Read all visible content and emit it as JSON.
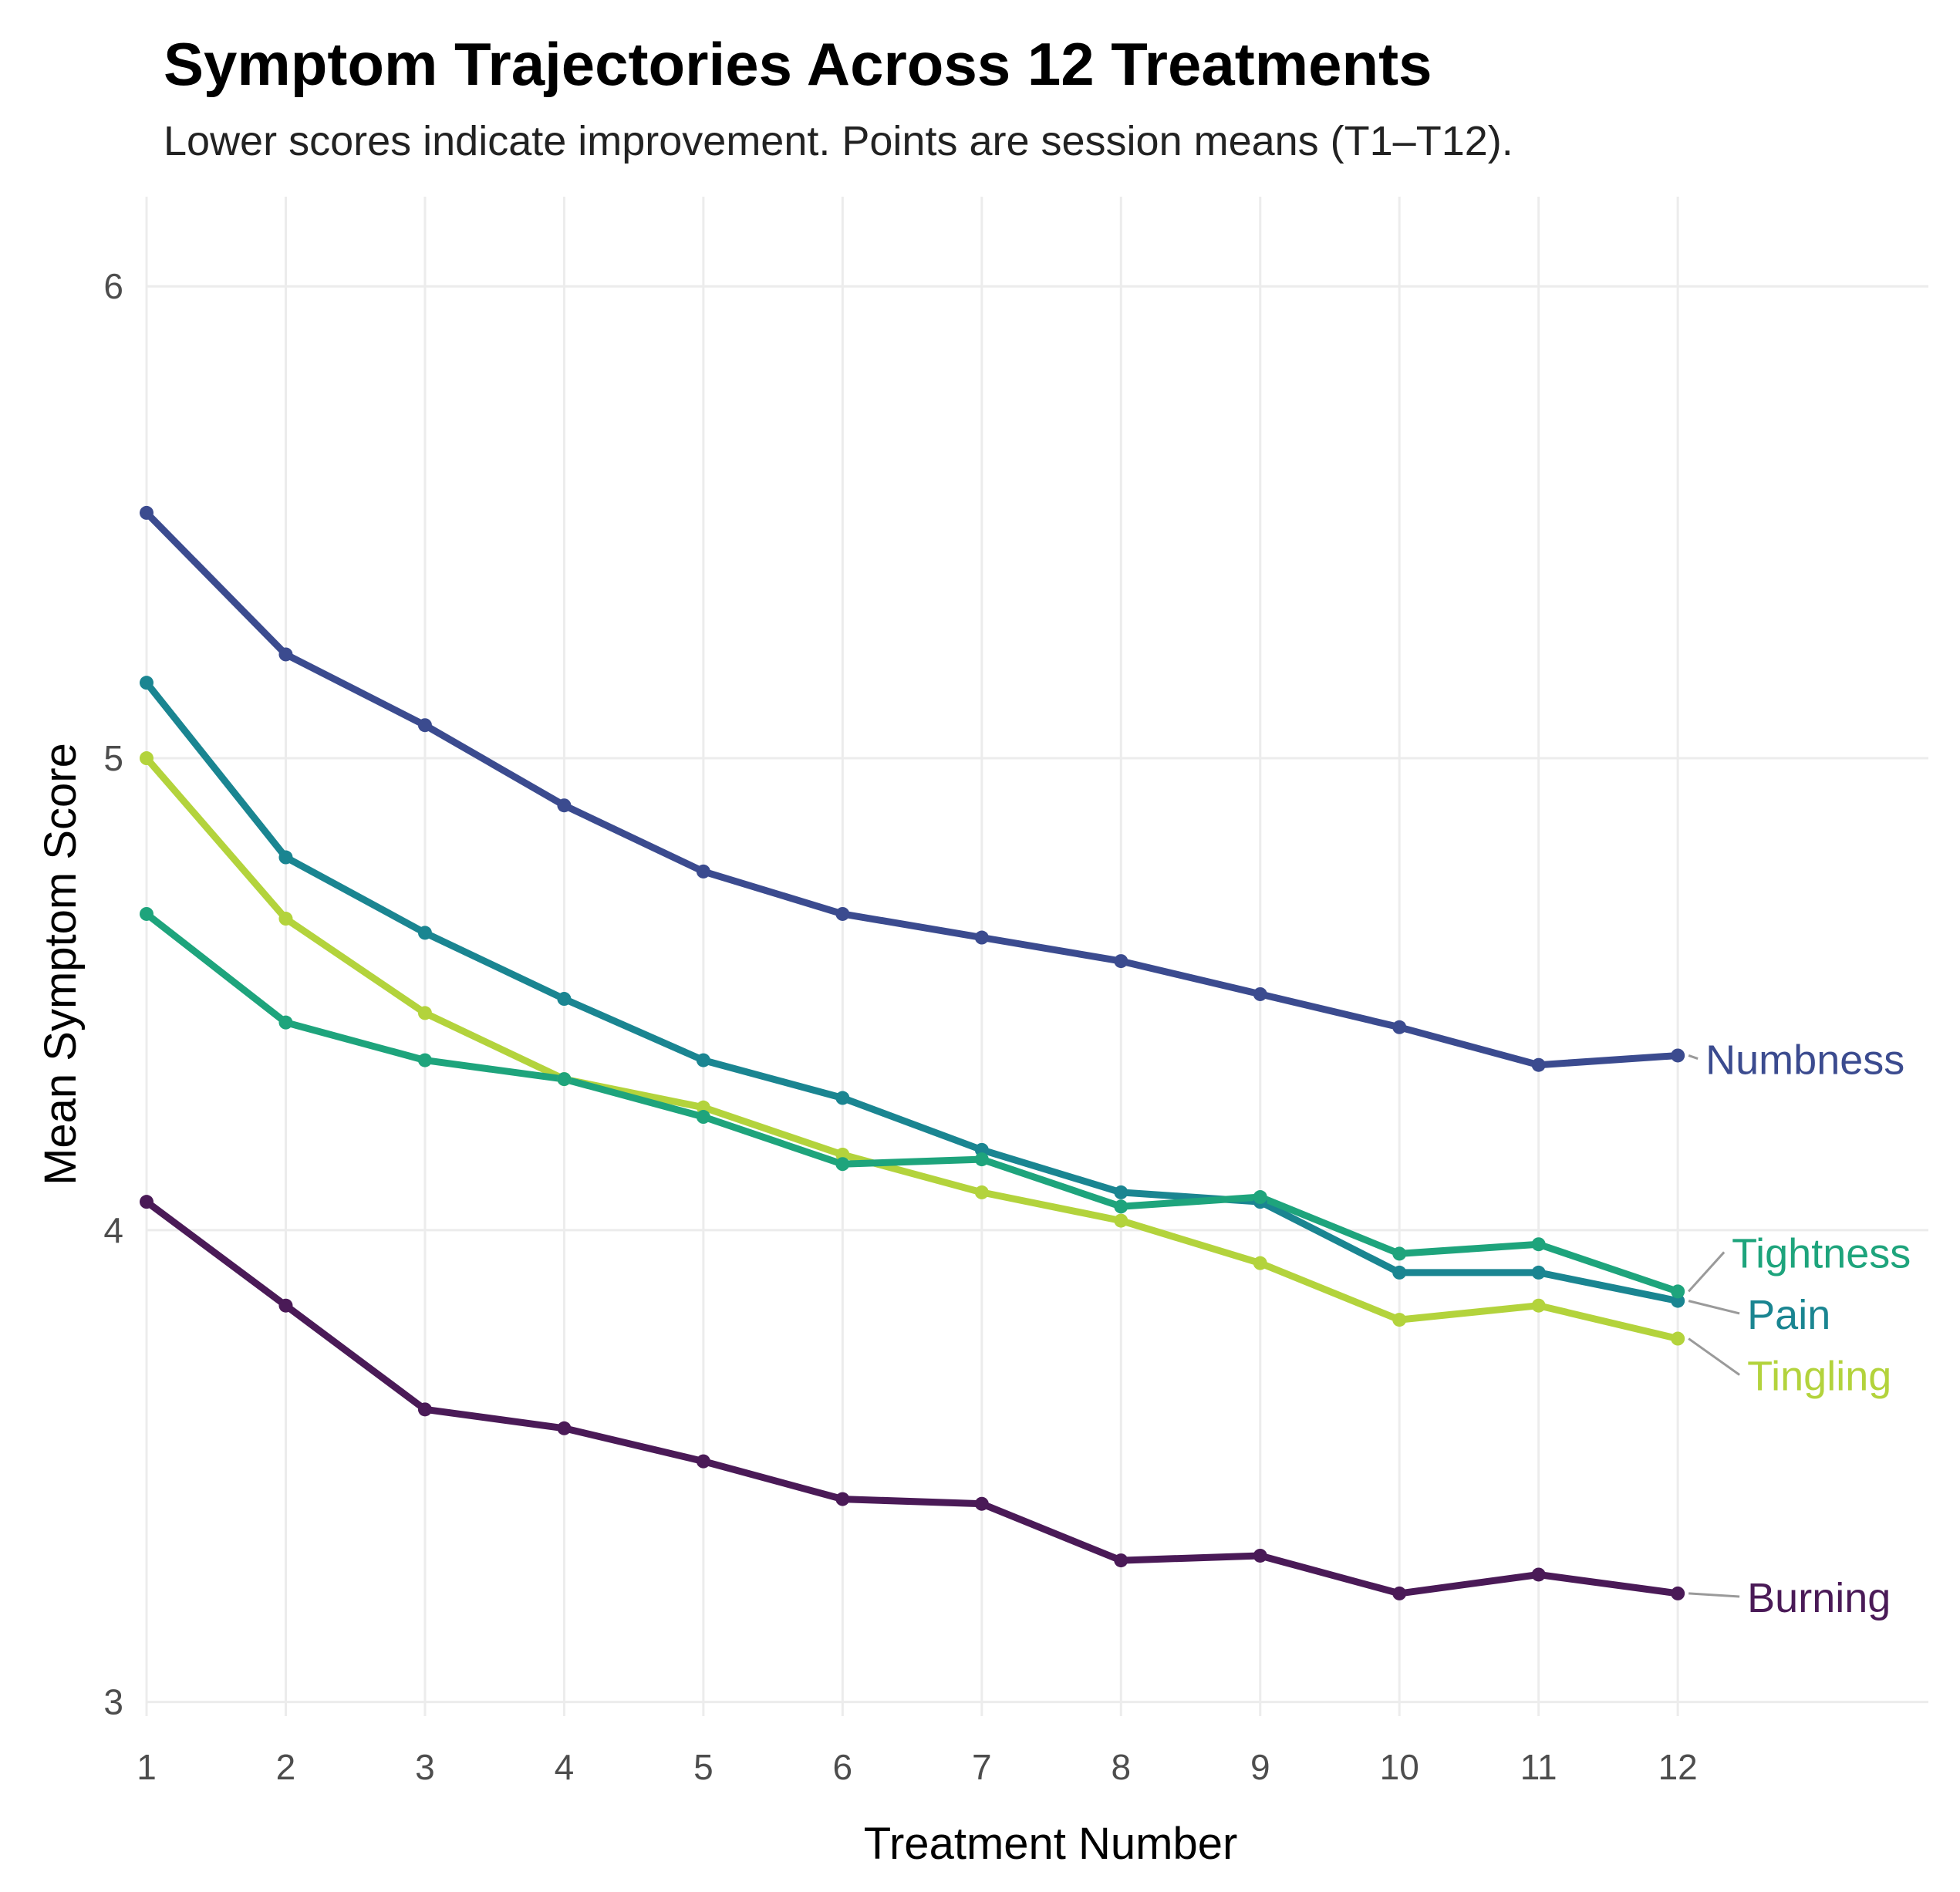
{
  "chart_data": {
    "type": "line",
    "title": "Symptom Trajectories Across 12 Treatments",
    "subtitle": "Lower scores indicate improvement. Points are session means (T1–T12).",
    "xlabel": "Treatment Number",
    "ylabel": "Mean Symptom Score",
    "x": [
      1,
      2,
      3,
      4,
      5,
      6,
      7,
      8,
      9,
      10,
      11,
      12
    ],
    "xlim": [
      1,
      13.8
    ],
    "ylim": [
      2.97,
      6.19
    ],
    "y_ticks": [
      3,
      4,
      5,
      6
    ],
    "grid": true,
    "legend": "direct labels at line ends (right)",
    "series": [
      {
        "name": "Numbness",
        "color": "#3b4b8f",
        "values": [
          5.52,
          5.22,
          5.07,
          4.9,
          4.76,
          4.67,
          4.62,
          4.57,
          4.5,
          4.43,
          4.35,
          4.37
        ]
      },
      {
        "name": "Pain",
        "color": "#1a8591",
        "values": [
          5.16,
          4.79,
          4.63,
          4.49,
          4.36,
          4.28,
          4.17,
          4.08,
          4.06,
          3.91,
          3.91,
          3.85
        ]
      },
      {
        "name": "Tingling",
        "color": "#b3d33c",
        "values": [
          5.0,
          4.66,
          4.46,
          4.32,
          4.26,
          4.16,
          4.08,
          4.02,
          3.93,
          3.81,
          3.84,
          3.77
        ]
      },
      {
        "name": "Tightness",
        "color": "#1ea47c",
        "values": [
          4.67,
          4.44,
          4.36,
          4.32,
          4.24,
          4.14,
          4.15,
          4.05,
          4.07,
          3.95,
          3.97,
          3.87
        ]
      },
      {
        "name": "Burning",
        "color": "#4a1a57",
        "values": [
          4.06,
          3.84,
          3.62,
          3.58,
          3.51,
          3.43,
          3.42,
          3.3,
          3.31,
          3.23,
          3.27,
          3.23
        ]
      }
    ],
    "end_label_positions": {
      "Numbness": 4.36,
      "Tightness": 3.95,
      "Pain": 3.82,
      "Tingling": 3.69,
      "Burning": 3.22
    }
  }
}
